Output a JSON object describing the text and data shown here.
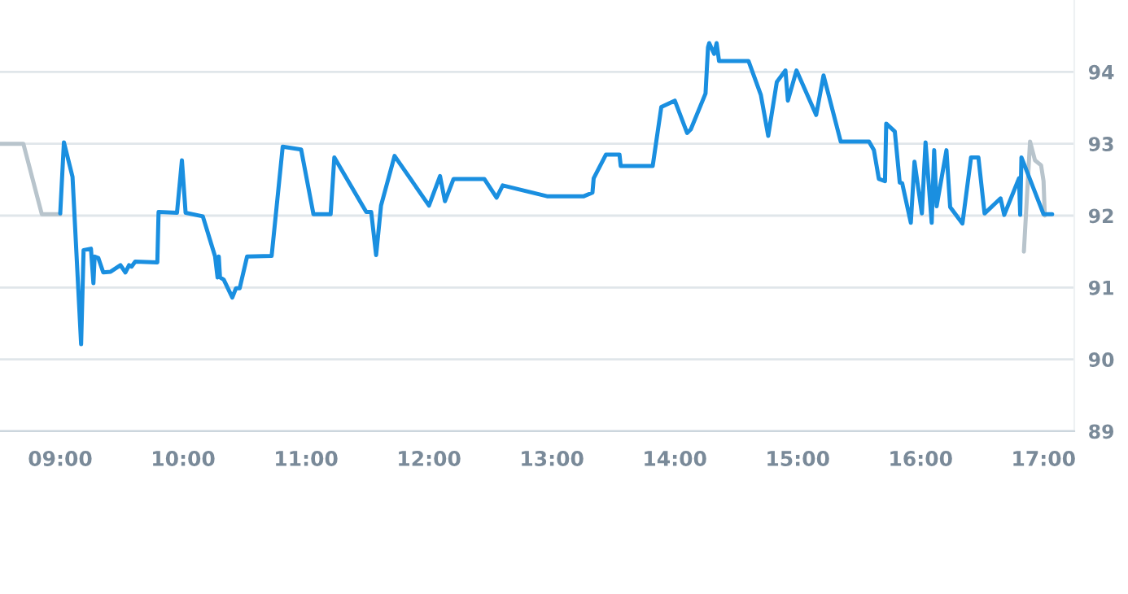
{
  "chart_data": {
    "type": "line",
    "series": [
      {
        "color": "#b8c4cc",
        "x": [
          8.51,
          8.7,
          8.85,
          9.0,
          12.0,
          16.84,
          16.89,
          16.93,
          16.98,
          17.0,
          17.01
        ],
        "values": [
          93.0,
          93.0,
          92.02,
          92.02,
          null,
          91.5,
          93.03,
          92.77,
          92.7,
          92.48,
          92.0
        ]
      },
      {
        "color": "#1a8fe0",
        "x": [
          9.0,
          9.03,
          9.1,
          9.17,
          9.19,
          9.25,
          9.27,
          9.28,
          9.31,
          9.35,
          9.41,
          9.49,
          9.53,
          9.56,
          9.58,
          9.61,
          9.79,
          9.8,
          9.95,
          9.99,
          10.02,
          10.16,
          10.26,
          10.28,
          10.29,
          10.3,
          10.33,
          10.4,
          10.43,
          10.46,
          10.52,
          10.72,
          10.81,
          10.96,
          11.06,
          11.2,
          11.23,
          11.49,
          11.53,
          11.57,
          11.61,
          11.72,
          12.0,
          12.09,
          12.13,
          12.2,
          12.45,
          12.55,
          12.6,
          12.96,
          13.26,
          13.33,
          13.34,
          13.44,
          13.55,
          13.56,
          13.82,
          13.89,
          14.0,
          14.1,
          14.13,
          14.25,
          14.27,
          14.28,
          14.32,
          14.34,
          14.36,
          14.44,
          14.6,
          14.7,
          14.76,
          14.83,
          14.9,
          14.92,
          14.99,
          15.15,
          15.21,
          15.35,
          15.58,
          15.62,
          15.66,
          15.71,
          15.72,
          15.79,
          15.83,
          15.85,
          15.92,
          15.95,
          16.01,
          16.04,
          16.09,
          16.11,
          16.13,
          16.21,
          16.24,
          16.34,
          16.41,
          16.47,
          16.52,
          16.65,
          16.68,
          16.8,
          16.81,
          16.82,
          17.0,
          17.07
        ],
        "values": [
          92.03,
          93.02,
          92.54,
          90.21,
          91.52,
          91.54,
          91.06,
          91.43,
          91.41,
          91.21,
          91.22,
          91.31,
          91.21,
          91.31,
          91.29,
          91.36,
          91.35,
          92.05,
          92.04,
          92.77,
          92.04,
          91.99,
          91.43,
          91.14,
          91.43,
          91.14,
          91.11,
          90.86,
          90.99,
          90.99,
          91.43,
          91.44,
          92.96,
          92.92,
          92.02,
          92.02,
          92.81,
          92.05,
          92.05,
          91.45,
          92.14,
          92.83,
          92.14,
          92.55,
          92.2,
          92.51,
          92.51,
          92.25,
          92.42,
          92.27,
          92.27,
          92.32,
          92.52,
          92.85,
          92.85,
          92.69,
          92.69,
          93.51,
          93.6,
          93.15,
          93.2,
          93.7,
          94.34,
          94.4,
          94.25,
          94.4,
          94.15,
          94.15,
          94.15,
          93.68,
          93.11,
          93.86,
          94.02,
          93.6,
          94.02,
          93.4,
          93.95,
          93.03,
          93.03,
          92.91,
          92.51,
          92.48,
          93.28,
          93.17,
          92.46,
          92.45,
          91.9,
          92.75,
          92.03,
          93.02,
          91.9,
          92.91,
          92.13,
          92.91,
          92.12,
          91.89,
          92.81,
          92.81,
          92.03,
          92.24,
          92.01,
          92.52,
          92.01,
          92.81,
          92.02,
          92.02
        ]
      }
    ],
    "xlim": [
      8.51,
      17.25
    ],
    "xticks": [
      {
        "value": 9,
        "label": "09:00"
      },
      {
        "value": 10,
        "label": "10:00"
      },
      {
        "value": 11,
        "label": "11:00"
      },
      {
        "value": 12,
        "label": "12:00"
      },
      {
        "value": 13,
        "label": "13:00"
      },
      {
        "value": 14,
        "label": "14:00"
      },
      {
        "value": 15,
        "label": "15:00"
      },
      {
        "value": 16,
        "label": "16:00"
      },
      {
        "value": 17,
        "label": "17:00"
      }
    ],
    "ylim": [
      89,
      95
    ],
    "yticks": [
      89,
      90,
      91,
      92,
      93,
      94
    ],
    "grid": "y",
    "line_style": "solid",
    "marker": "none"
  }
}
